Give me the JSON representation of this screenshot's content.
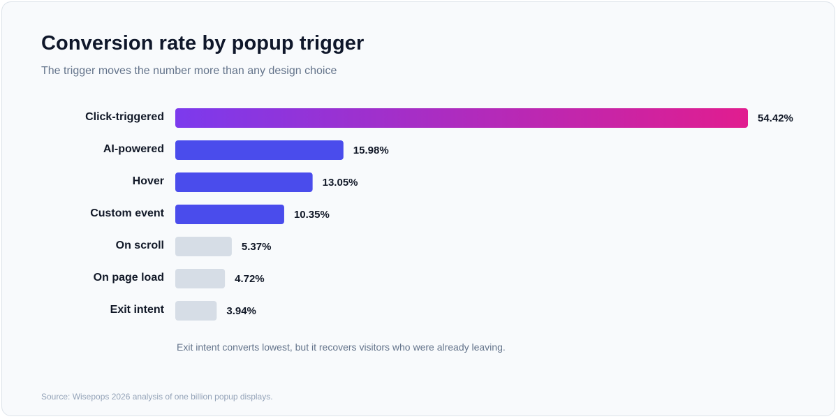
{
  "chart_data": {
    "type": "bar",
    "orientation": "horizontal",
    "title": "Conversion rate by popup trigger",
    "subtitle": "The trigger moves the number more than any design choice",
    "categories": [
      "Click-triggered",
      "AI-powered",
      "Hover",
      "Custom event",
      "On scroll",
      "On page load",
      "Exit intent"
    ],
    "values": [
      54.42,
      15.98,
      13.05,
      10.35,
      5.37,
      4.72,
      3.94
    ],
    "value_labels": [
      "54.42%",
      "15.98%",
      "13.05%",
      "10.35%",
      "5.37%",
      "4.72%",
      "3.94%"
    ],
    "xlim": [
      0,
      54.42
    ],
    "grid": false,
    "annotation": "Exit intent converts lowest, but it recovers visitors who were already leaving.",
    "source": "Source: Wisepops 2026 analysis of one billion popup displays.",
    "colors": {
      "highlight_gradient_start": "#7c3aed",
      "highlight_gradient_end": "#e11d8f",
      "accent": "#4a4cec",
      "muted": "#d6dde6",
      "label": "#111827"
    },
    "bar_styles": [
      "gradient",
      "accent",
      "accent",
      "accent",
      "muted",
      "muted",
      "muted"
    ]
  }
}
